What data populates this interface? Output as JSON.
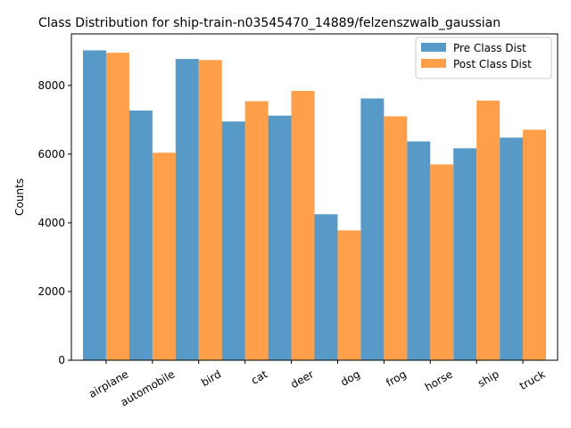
{
  "chart_data": {
    "type": "bar",
    "title": "Class Distribution for ship-train-n03545470_14889/felzenszwalb_gaussian",
    "xlabel": "",
    "ylabel": "Counts",
    "ylim": [
      0,
      9500
    ],
    "yticks": [
      0,
      2000,
      4000,
      6000,
      8000
    ],
    "categories": [
      "airplane",
      "automobile",
      "bird",
      "cat",
      "deer",
      "dog",
      "frog",
      "horse",
      "ship",
      "truck"
    ],
    "series": [
      {
        "name": "Pre Class Dist",
        "color": "#1f77b4",
        "values": [
          9020,
          7270,
          8770,
          6950,
          7120,
          4250,
          7620,
          6370,
          6170,
          6480
        ]
      },
      {
        "name": "Post Class Dist",
        "color": "#ff7f0e",
        "values": [
          8950,
          6040,
          8740,
          7540,
          7840,
          3780,
          7100,
          5700,
          7560,
          6710
        ]
      }
    ],
    "bar_opacity": 0.75,
    "grid": false,
    "legend": "top-right"
  }
}
